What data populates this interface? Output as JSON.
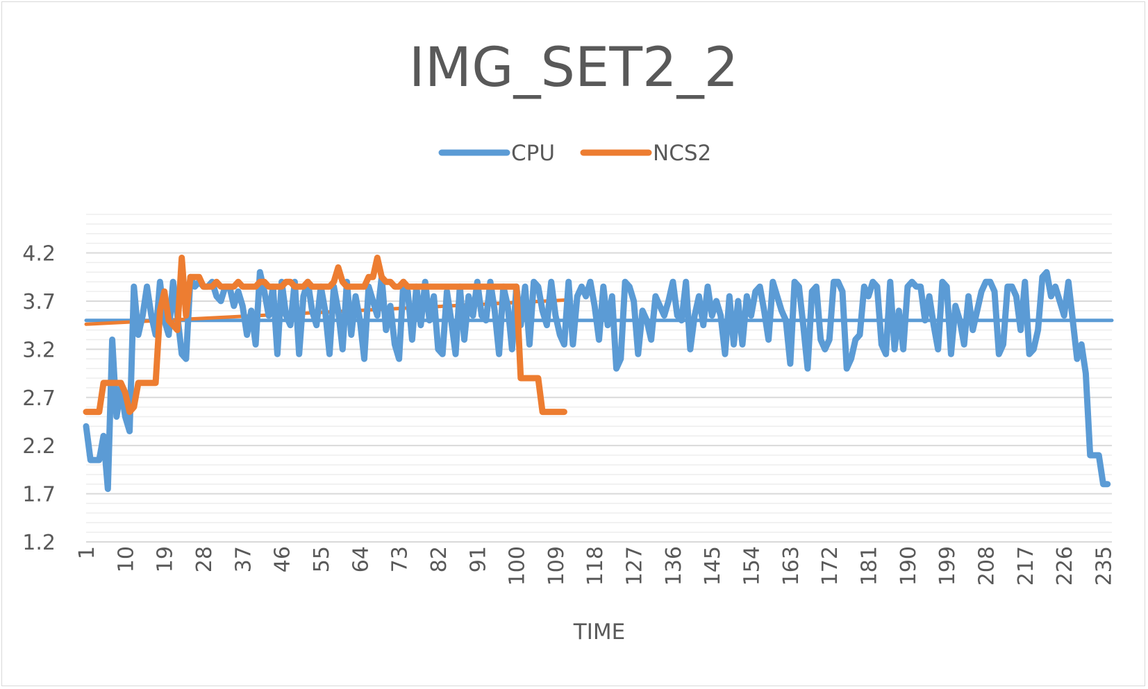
{
  "chart_data": {
    "type": "line",
    "title": "IMG_SET2_2",
    "xlabel": "TIME",
    "ylabel": "",
    "ylim": [
      1.2,
      4.6
    ],
    "y_ticks": [
      "1.2",
      "1.7",
      "2.2",
      "2.7",
      "3.2",
      "3.7",
      "4.2"
    ],
    "x_tick_labels": [
      "1",
      "10",
      "19",
      "28",
      "37",
      "46",
      "55",
      "64",
      "73",
      "82",
      "91",
      "100",
      "109",
      "118",
      "127",
      "136",
      "145",
      "154",
      "163",
      "172",
      "181",
      "190",
      "199",
      "208",
      "217",
      "226",
      "235"
    ],
    "x_range": [
      1,
      237
    ],
    "grid": true,
    "legend_position": "top",
    "series": [
      {
        "name": "CPU",
        "color": "#5b9bd5",
        "values": [
          2.4,
          2.05,
          2.05,
          2.05,
          2.3,
          1.75,
          3.3,
          2.5,
          2.8,
          2.5,
          2.35,
          3.85,
          3.35,
          3.55,
          3.85,
          3.55,
          3.35,
          3.9,
          3.5,
          3.35,
          3.9,
          3.55,
          3.15,
          3.1,
          3.95,
          3.85,
          3.9,
          3.85,
          3.85,
          3.9,
          3.75,
          3.7,
          3.85,
          3.85,
          3.65,
          3.8,
          3.65,
          3.35,
          3.6,
          3.25,
          4.0,
          3.8,
          3.55,
          3.85,
          3.15,
          3.9,
          3.55,
          3.45,
          3.9,
          3.15,
          3.75,
          3.9,
          3.6,
          3.45,
          3.85,
          3.6,
          3.15,
          3.85,
          3.6,
          3.2,
          3.9,
          3.35,
          3.75,
          3.5,
          3.1,
          3.85,
          3.7,
          3.55,
          3.95,
          3.4,
          3.65,
          3.25,
          3.1,
          3.9,
          3.8,
          3.3,
          3.85,
          3.45,
          3.9,
          3.5,
          3.75,
          3.2,
          3.15,
          3.8,
          3.5,
          3.15,
          3.85,
          3.3,
          3.75,
          3.55,
          3.9,
          3.55,
          3.5,
          3.9,
          3.6,
          3.15,
          3.85,
          3.65,
          3.2,
          3.85,
          3.45,
          3.85,
          3.25,
          3.9,
          3.85,
          3.6,
          3.45,
          3.9,
          3.55,
          3.35,
          3.25,
          3.9,
          3.25,
          3.75,
          3.85,
          3.75,
          3.9,
          3.65,
          3.3,
          3.85,
          3.45,
          3.75,
          3.0,
          3.1,
          3.9,
          3.85,
          3.7,
          3.15,
          3.6,
          3.5,
          3.3,
          3.75,
          3.65,
          3.55,
          3.7,
          3.9,
          3.55,
          3.5,
          3.9,
          3.2,
          3.55,
          3.75,
          3.45,
          3.85,
          3.55,
          3.7,
          3.55,
          3.15,
          3.75,
          3.25,
          3.7,
          3.25,
          3.75,
          3.55,
          3.8,
          3.85,
          3.6,
          3.3,
          3.9,
          3.75,
          3.6,
          3.5,
          3.05,
          3.9,
          3.85,
          3.45,
          3.0,
          3.8,
          3.85,
          3.3,
          3.2,
          3.3,
          3.9,
          3.9,
          3.8,
          3.0,
          3.1,
          3.3,
          3.35,
          3.85,
          3.75,
          3.9,
          3.85,
          3.25,
          3.15,
          3.9,
          3.2,
          3.6,
          3.2,
          3.85,
          3.9,
          3.85,
          3.85,
          3.5,
          3.75,
          3.45,
          3.2,
          3.9,
          3.85,
          3.15,
          3.65,
          3.5,
          3.25,
          3.75,
          3.4,
          3.6,
          3.8,
          3.9,
          3.9,
          3.8,
          3.15,
          3.25,
          3.85,
          3.85,
          3.75,
          3.4,
          3.9,
          3.15,
          3.2,
          3.4,
          3.95,
          4.0,
          3.75,
          3.85,
          3.7,
          3.55,
          3.9,
          3.5,
          3.1,
          3.25,
          2.95,
          2.1,
          2.1,
          2.1,
          1.8,
          1.8
        ]
      },
      {
        "name": "NCS2",
        "color": "#ed7d31",
        "values": [
          2.55,
          2.55,
          2.55,
          2.55,
          2.85,
          2.85,
          2.85,
          2.85,
          2.85,
          2.75,
          2.55,
          2.6,
          2.85,
          2.85,
          2.85,
          2.85,
          2.85,
          3.6,
          3.8,
          3.5,
          3.45,
          3.4,
          4.15,
          3.55,
          3.95,
          3.95,
          3.95,
          3.85,
          3.85,
          3.85,
          3.9,
          3.85,
          3.85,
          3.85,
          3.85,
          3.9,
          3.85,
          3.85,
          3.85,
          3.85,
          3.9,
          3.9,
          3.85,
          3.85,
          3.85,
          3.85,
          3.9,
          3.9,
          3.85,
          3.85,
          3.85,
          3.9,
          3.85,
          3.85,
          3.85,
          3.85,
          3.85,
          3.9,
          4.05,
          3.9,
          3.85,
          3.85,
          3.85,
          3.85,
          3.85,
          3.95,
          3.95,
          4.15,
          3.95,
          3.9,
          3.9,
          3.85,
          3.85,
          3.9,
          3.85,
          3.85,
          3.85,
          3.85,
          3.85,
          3.85,
          3.85,
          3.85,
          3.85,
          3.85,
          3.85,
          3.85,
          3.85,
          3.85,
          3.85,
          3.85,
          3.85,
          3.85,
          3.85,
          3.85,
          3.85,
          3.85,
          3.85,
          3.85,
          3.85,
          3.85,
          2.9,
          2.9,
          2.9,
          2.9,
          2.9,
          2.55,
          2.55,
          2.55,
          2.55,
          2.55,
          2.55
        ]
      }
    ],
    "trendlines": [
      {
        "series": "CPU",
        "color": "#5b9bd5",
        "x": [
          1,
          237
        ],
        "y": [
          3.5,
          3.5
        ]
      },
      {
        "series": "NCS2",
        "color": "#ed7d31",
        "x": [
          1,
          111
        ],
        "y": [
          3.46,
          3.71
        ]
      }
    ]
  }
}
